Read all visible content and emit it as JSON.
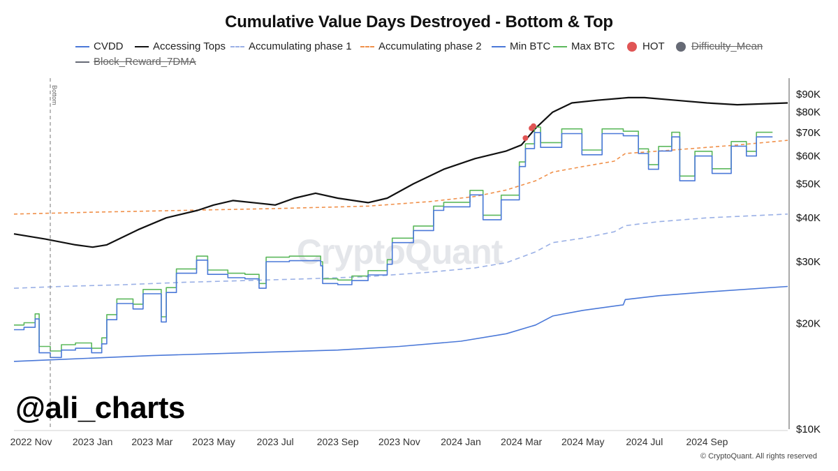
{
  "title": "Cumulative Value Days Destroyed - Bottom & Top",
  "legend": [
    {
      "label": "CVDD",
      "color": "#4a78d8",
      "style": "solid",
      "active": true
    },
    {
      "label": "Accessing Tops",
      "color": "#111111",
      "style": "solid",
      "active": true
    },
    {
      "label": "Accumulating phase 1",
      "color": "#9ab0e6",
      "style": "dashed",
      "active": true
    },
    {
      "label": "Accumulating phase 2",
      "color": "#f0904a",
      "style": "dashed",
      "active": true
    },
    {
      "label": "Min BTC",
      "color": "#4a78d8",
      "style": "solid",
      "active": true
    },
    {
      "label": "Max BTC",
      "color": "#5cb85c",
      "style": "solid",
      "active": true
    },
    {
      "label": "HOT",
      "color": "#e05555",
      "style": "dot",
      "active": true
    },
    {
      "label": "Difficulty_Mean",
      "color": "#666a75",
      "style": "dot",
      "active": false
    },
    {
      "label": "Block_Reward_7DMA",
      "color": "#666a75",
      "style": "solid",
      "active": false
    }
  ],
  "watermark": "CryptoQuant",
  "handle": "@ali_charts",
  "copyright": "© CryptoQuant. All rights reserved",
  "chart_data": {
    "type": "line",
    "yscale": "log",
    "ylim": [
      10000,
      100000
    ],
    "xlim": [
      "2022-10-15",
      "2024-11-20"
    ],
    "y_ticks": [
      {
        "value": 10000,
        "label": "$10K"
      },
      {
        "value": 20000,
        "label": "$20K"
      },
      {
        "value": 30000,
        "label": "$30K"
      },
      {
        "value": 40000,
        "label": "$40K"
      },
      {
        "value": 50000,
        "label": "$50K"
      },
      {
        "value": 60000,
        "label": "$60K"
      },
      {
        "value": 70000,
        "label": "$70K"
      },
      {
        "value": 80000,
        "label": "$80K"
      },
      {
        "value": 90000,
        "label": "$90K"
      }
    ],
    "x_ticks": [
      {
        "value": "2022-11-01",
        "label": "2022 Nov"
      },
      {
        "value": "2023-01-01",
        "label": "2023 Jan"
      },
      {
        "value": "2023-03-01",
        "label": "2023 Mar"
      },
      {
        "value": "2023-05-01",
        "label": "2023 May"
      },
      {
        "value": "2023-07-01",
        "label": "2023 Jul"
      },
      {
        "value": "2023-09-01",
        "label": "2023 Sep"
      },
      {
        "value": "2023-11-01",
        "label": "2023 Nov"
      },
      {
        "value": "2024-01-01",
        "label": "2024 Jan"
      },
      {
        "value": "2024-03-01",
        "label": "2024 Mar"
      },
      {
        "value": "2024-05-01",
        "label": "2024 May"
      },
      {
        "value": "2024-07-01",
        "label": "2024 Jul"
      },
      {
        "value": "2024-09-01",
        "label": "2024 Sep"
      }
    ],
    "annotations": [
      {
        "type": "vline",
        "x": "2022-11-20",
        "label": "Bottom"
      }
    ],
    "series": [
      {
        "name": "CVDD",
        "color": "#4a78d8",
        "dash": "",
        "points": [
          [
            "2022-10-15",
            15600
          ],
          [
            "2022-12-01",
            15800
          ],
          [
            "2023-01-15",
            16000
          ],
          [
            "2023-03-01",
            16200
          ],
          [
            "2023-05-01",
            16400
          ],
          [
            "2023-07-01",
            16600
          ],
          [
            "2023-09-01",
            16800
          ],
          [
            "2023-11-01",
            17200
          ],
          [
            "2024-01-01",
            17800
          ],
          [
            "2024-02-15",
            18700
          ],
          [
            "2024-03-15",
            19800
          ],
          [
            "2024-04-01",
            21000
          ],
          [
            "2024-05-01",
            21800
          ],
          [
            "2024-06-10",
            22600
          ],
          [
            "2024-06-12",
            23400
          ],
          [
            "2024-07-15",
            24000
          ],
          [
            "2024-09-01",
            24600
          ],
          [
            "2024-11-20",
            25500
          ]
        ]
      },
      {
        "name": "Accessing Tops",
        "color": "#111111",
        "dash": "",
        "points": [
          [
            "2022-10-15",
            36000
          ],
          [
            "2022-11-15",
            34800
          ],
          [
            "2022-12-15",
            33500
          ],
          [
            "2023-01-01",
            33000
          ],
          [
            "2023-01-15",
            33500
          ],
          [
            "2023-02-15",
            37000
          ],
          [
            "2023-03-15",
            40000
          ],
          [
            "2023-04-15",
            42000
          ],
          [
            "2023-05-01",
            43500
          ],
          [
            "2023-05-20",
            44800
          ],
          [
            "2023-06-15",
            44000
          ],
          [
            "2023-07-01",
            43500
          ],
          [
            "2023-07-20",
            45500
          ],
          [
            "2023-08-10",
            47000
          ],
          [
            "2023-09-01",
            45500
          ],
          [
            "2023-10-01",
            44200
          ],
          [
            "2023-10-20",
            45500
          ],
          [
            "2023-11-15",
            50000
          ],
          [
            "2023-12-15",
            55000
          ],
          [
            "2024-01-15",
            59000
          ],
          [
            "2024-02-15",
            62000
          ],
          [
            "2024-03-01",
            64500
          ],
          [
            "2024-03-15",
            72000
          ],
          [
            "2024-04-01",
            80000
          ],
          [
            "2024-04-20",
            85000
          ],
          [
            "2024-05-15",
            86500
          ],
          [
            "2024-06-15",
            88000
          ],
          [
            "2024-07-01",
            88000
          ],
          [
            "2024-08-01",
            86500
          ],
          [
            "2024-09-01",
            85000
          ],
          [
            "2024-10-01",
            84000
          ],
          [
            "2024-11-20",
            85000
          ]
        ]
      },
      {
        "name": "Accumulating phase 1",
        "color": "#9ab0e6",
        "dash": "7,5",
        "points": [
          [
            "2022-10-15",
            25200
          ],
          [
            "2022-12-01",
            25500
          ],
          [
            "2023-02-01",
            25800
          ],
          [
            "2023-04-01",
            26200
          ],
          [
            "2023-06-01",
            26500
          ],
          [
            "2023-08-01",
            26800
          ],
          [
            "2023-10-01",
            27200
          ],
          [
            "2023-12-01",
            28000
          ],
          [
            "2024-01-15",
            28800
          ],
          [
            "2024-02-15",
            29800
          ],
          [
            "2024-03-15",
            32000
          ],
          [
            "2024-04-01",
            34000
          ],
          [
            "2024-05-01",
            35000
          ],
          [
            "2024-06-01",
            36500
          ],
          [
            "2024-06-12",
            38000
          ],
          [
            "2024-07-15",
            39000
          ],
          [
            "2024-09-01",
            40000
          ],
          [
            "2024-11-20",
            41000
          ]
        ]
      },
      {
        "name": "Accumulating phase 2",
        "color": "#f0904a",
        "dash": "5,4",
        "points": [
          [
            "2022-10-15",
            41000
          ],
          [
            "2023-01-01",
            41500
          ],
          [
            "2023-04-01",
            42000
          ],
          [
            "2023-07-01",
            42500
          ],
          [
            "2023-10-01",
            43200
          ],
          [
            "2023-12-01",
            44500
          ],
          [
            "2024-01-15",
            46000
          ],
          [
            "2024-02-15",
            48000
          ],
          [
            "2024-03-15",
            51000
          ],
          [
            "2024-04-01",
            54000
          ],
          [
            "2024-05-01",
            56000
          ],
          [
            "2024-06-01",
            58000
          ],
          [
            "2024-06-12",
            61000
          ],
          [
            "2024-08-01",
            62500
          ],
          [
            "2024-10-01",
            64500
          ],
          [
            "2024-11-20",
            66500
          ]
        ]
      },
      {
        "name": "Min BTC",
        "color": "#4a78d8",
        "dash": "",
        "points": [
          [
            "2022-10-15",
            19200
          ],
          [
            "2022-10-25",
            19500
          ],
          [
            "2022-11-05",
            20600
          ],
          [
            "2022-11-09",
            16500
          ],
          [
            "2022-11-20",
            16000
          ],
          [
            "2022-12-01",
            16800
          ],
          [
            "2022-12-15",
            17000
          ],
          [
            "2022-12-31",
            16500
          ],
          [
            "2023-01-10",
            17500
          ],
          [
            "2023-01-15",
            20500
          ],
          [
            "2023-01-25",
            22800
          ],
          [
            "2023-02-10",
            22000
          ],
          [
            "2023-02-20",
            24300
          ],
          [
            "2023-03-10",
            20200
          ],
          [
            "2023-03-15",
            24500
          ],
          [
            "2023-03-25",
            27800
          ],
          [
            "2023-04-14",
            30300
          ],
          [
            "2023-04-25",
            27600
          ],
          [
            "2023-05-15",
            27000
          ],
          [
            "2023-06-01",
            26800
          ],
          [
            "2023-06-15",
            25200
          ],
          [
            "2023-06-22",
            30000
          ],
          [
            "2023-07-15",
            30200
          ],
          [
            "2023-08-15",
            29200
          ],
          [
            "2023-08-17",
            26000
          ],
          [
            "2023-09-01",
            25800
          ],
          [
            "2023-09-15",
            26500
          ],
          [
            "2023-10-01",
            27500
          ],
          [
            "2023-10-20",
            29500
          ],
          [
            "2023-10-25",
            34000
          ],
          [
            "2023-11-15",
            36800
          ],
          [
            "2023-12-05",
            42000
          ],
          [
            "2023-12-15",
            43000
          ],
          [
            "2024-01-10",
            46500
          ],
          [
            "2024-01-23",
            39500
          ],
          [
            "2024-02-10",
            45000
          ],
          [
            "2024-02-28",
            56000
          ],
          [
            "2024-03-05",
            63000
          ],
          [
            "2024-03-14",
            70000
          ],
          [
            "2024-03-20",
            63500
          ],
          [
            "2024-04-10",
            69500
          ],
          [
            "2024-04-30",
            60500
          ],
          [
            "2024-05-20",
            69500
          ],
          [
            "2024-06-10",
            68500
          ],
          [
            "2024-06-25",
            61000
          ],
          [
            "2024-07-05",
            55000
          ],
          [
            "2024-07-15",
            62000
          ],
          [
            "2024-07-28",
            68000
          ],
          [
            "2024-08-05",
            51000
          ],
          [
            "2024-08-20",
            60000
          ],
          [
            "2024-09-06",
            53500
          ],
          [
            "2024-09-25",
            64000
          ],
          [
            "2024-10-10",
            60000
          ],
          [
            "2024-10-20",
            68000
          ],
          [
            "2024-11-05",
            68000
          ]
        ]
      },
      {
        "name": "Max BTC",
        "color": "#5cb85c",
        "dash": "",
        "points": [
          [
            "2022-10-15",
            19800
          ],
          [
            "2022-10-25",
            20100
          ],
          [
            "2022-11-05",
            21300
          ],
          [
            "2022-11-09",
            17200
          ],
          [
            "2022-11-20",
            16700
          ],
          [
            "2022-12-01",
            17400
          ],
          [
            "2022-12-15",
            17600
          ],
          [
            "2022-12-31",
            17000
          ],
          [
            "2023-01-10",
            18200
          ],
          [
            "2023-01-15",
            21200
          ],
          [
            "2023-01-25",
            23500
          ],
          [
            "2023-02-10",
            22700
          ],
          [
            "2023-02-20",
            25000
          ],
          [
            "2023-03-10",
            20900
          ],
          [
            "2023-03-15",
            25300
          ],
          [
            "2023-03-25",
            28600
          ],
          [
            "2023-04-14",
            31100
          ],
          [
            "2023-04-25",
            28400
          ],
          [
            "2023-05-15",
            27800
          ],
          [
            "2023-06-01",
            27600
          ],
          [
            "2023-06-15",
            26000
          ],
          [
            "2023-06-22",
            30900
          ],
          [
            "2023-07-15",
            31100
          ],
          [
            "2023-08-15",
            30000
          ],
          [
            "2023-08-17",
            26800
          ],
          [
            "2023-09-01",
            26600
          ],
          [
            "2023-09-15",
            27300
          ],
          [
            "2023-10-01",
            28300
          ],
          [
            "2023-10-20",
            30400
          ],
          [
            "2023-10-25",
            35000
          ],
          [
            "2023-11-15",
            37900
          ],
          [
            "2023-12-05",
            43200
          ],
          [
            "2023-12-15",
            44300
          ],
          [
            "2024-01-10",
            47900
          ],
          [
            "2024-01-23",
            40700
          ],
          [
            "2024-02-10",
            46400
          ],
          [
            "2024-02-28",
            57700
          ],
          [
            "2024-03-05",
            65000
          ],
          [
            "2024-03-14",
            72500
          ],
          [
            "2024-03-20",
            65500
          ],
          [
            "2024-04-10",
            71700
          ],
          [
            "2024-04-30",
            62400
          ],
          [
            "2024-05-20",
            71700
          ],
          [
            "2024-06-10",
            70600
          ],
          [
            "2024-06-25",
            62900
          ],
          [
            "2024-07-05",
            56700
          ],
          [
            "2024-07-15",
            63900
          ],
          [
            "2024-07-28",
            70100
          ],
          [
            "2024-08-05",
            52600
          ],
          [
            "2024-08-20",
            61900
          ],
          [
            "2024-09-06",
            55200
          ],
          [
            "2024-09-25",
            66000
          ],
          [
            "2024-10-10",
            61900
          ],
          [
            "2024-10-20",
            70100
          ],
          [
            "2024-11-05",
            70100
          ]
        ]
      }
    ],
    "hot_points": [
      [
        "2024-03-05",
        67500
      ],
      [
        "2024-03-11",
        72000
      ],
      [
        "2024-03-13",
        73000
      ]
    ]
  }
}
